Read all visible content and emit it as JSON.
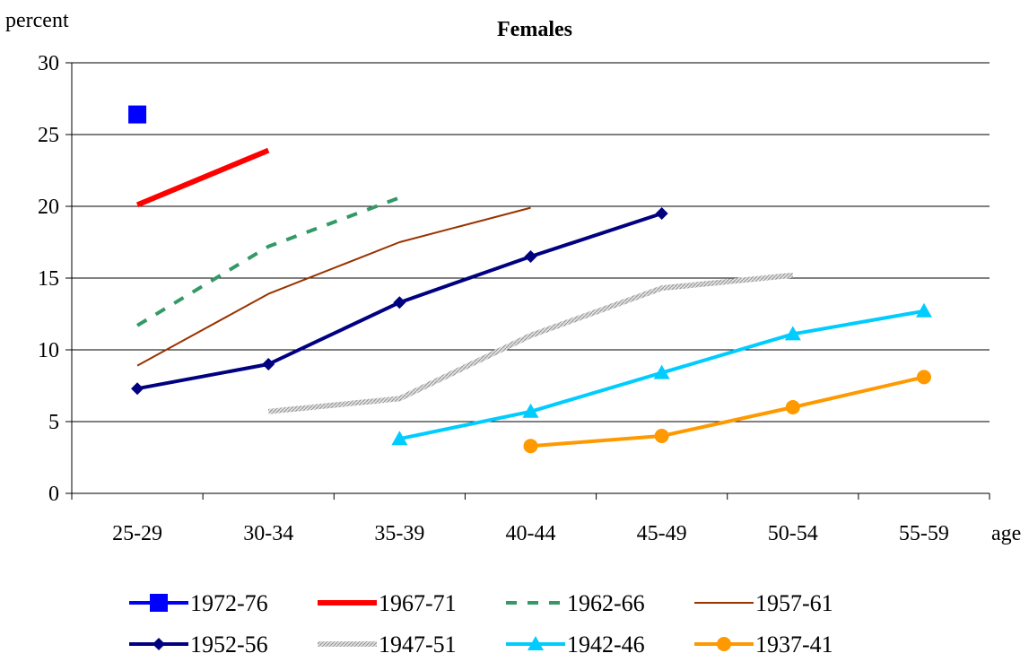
{
  "chart_data": {
    "type": "line",
    "title": "Females",
    "ylabel": "percent",
    "xlabel": "age",
    "ylim": [
      0,
      30
    ],
    "yticks": [
      0,
      5,
      10,
      15,
      20,
      25,
      30
    ],
    "categories": [
      "25-29",
      "30-34",
      "35-39",
      "40-44",
      "45-49",
      "50-54",
      "55-59"
    ],
    "grid": "horizontal",
    "legend_position": "bottom",
    "series": [
      {
        "name": "1972-76",
        "color": "#0000ff",
        "style": "marker-only",
        "marker": "square",
        "x": [
          "25-29"
        ],
        "values": [
          26.4
        ]
      },
      {
        "name": "1967-71",
        "color": "#ff0000",
        "style": "thick",
        "marker": "none",
        "x": [
          "25-29",
          "30-34"
        ],
        "values": [
          20.1,
          23.9
        ]
      },
      {
        "name": "1962-66",
        "color": "#339966",
        "style": "dashed",
        "marker": "none",
        "x": [
          "25-29",
          "30-34",
          "35-39"
        ],
        "values": [
          11.7,
          17.2,
          20.6
        ]
      },
      {
        "name": "1957-61",
        "color": "#993300",
        "style": "thin",
        "marker": "none",
        "x": [
          "25-29",
          "30-34",
          "35-39",
          "40-44"
        ],
        "values": [
          8.9,
          13.9,
          17.5,
          19.9
        ]
      },
      {
        "name": "1952-56",
        "color": "#000080",
        "style": "solid",
        "marker": "diamond",
        "x": [
          "25-29",
          "30-34",
          "35-39",
          "40-44",
          "45-49"
        ],
        "values": [
          7.3,
          9.0,
          13.3,
          16.5,
          19.5
        ]
      },
      {
        "name": "1947-51",
        "color": "#c0c0c0",
        "style": "hatched",
        "marker": "none",
        "x": [
          "30-34",
          "35-39",
          "40-44",
          "45-49",
          "50-54"
        ],
        "values": [
          5.7,
          6.6,
          11.0,
          14.3,
          15.2
        ]
      },
      {
        "name": "1942-46",
        "color": "#00ccff",
        "style": "solid",
        "marker": "triangle",
        "x": [
          "35-39",
          "40-44",
          "45-49",
          "50-54",
          "55-59"
        ],
        "values": [
          3.8,
          5.7,
          8.4,
          11.1,
          12.7
        ]
      },
      {
        "name": "1937-41",
        "color": "#ff9900",
        "style": "solid",
        "marker": "circle",
        "x": [
          "40-44",
          "45-49",
          "50-54",
          "55-59"
        ],
        "values": [
          3.3,
          4.0,
          6.0,
          8.1
        ]
      }
    ]
  }
}
